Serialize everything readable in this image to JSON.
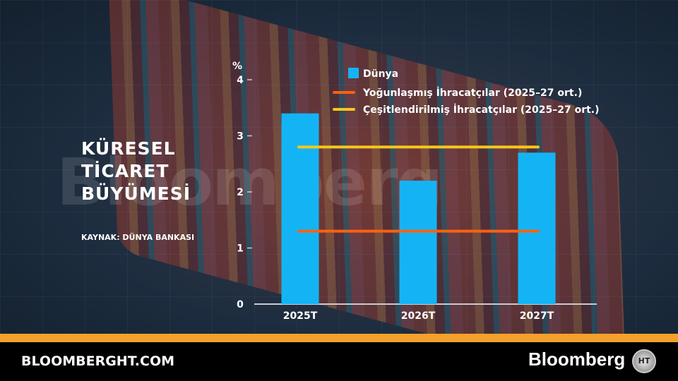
{
  "title_lines": [
    "KÜRESEL",
    "TİCARET",
    "BÜYÜMESİ"
  ],
  "source": "KAYNAK: DÜNYA BANKASI",
  "watermark": "Bloomberg",
  "footer": {
    "site": "BLOOMBERGHT.COM",
    "brand": "Bloomberg",
    "logo": "HT"
  },
  "chart_data": {
    "type": "bar",
    "categories": [
      "2025T",
      "2026T",
      "2027T"
    ],
    "ylabel": "%",
    "ylim": [
      0,
      4
    ],
    "yticks": [
      0,
      1,
      2,
      3,
      4
    ],
    "series": [
      {
        "name": "Dünya",
        "values": [
          3.4,
          2.2,
          2.7
        ],
        "color": "#14b4f4"
      }
    ],
    "reference_lines": [
      {
        "name": "Yoğunlaşmış İhracatçılar (2025–27 ort.)",
        "value": 1.3,
        "color": "#ff6010"
      },
      {
        "name": "Çeşitlendirilmiş İhracatçılar (2025–27 ort.)",
        "value": 2.8,
        "color": "#f6c81a"
      }
    ],
    "legend": "top-right",
    "grid": false
  }
}
